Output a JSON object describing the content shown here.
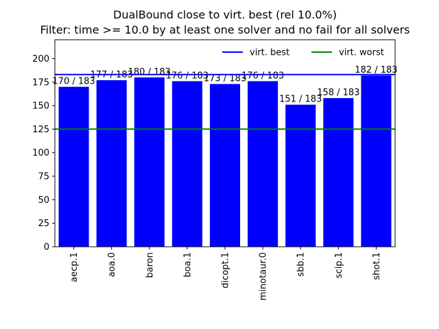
{
  "chart_data": {
    "type": "bar",
    "title": "DualBound close to virt. best (rel 10.0%)",
    "subtitle": "Filter: time >= 10.0 by at least one solver and no fail for all solvers",
    "categories": [
      "aecp.1",
      "aoa.0",
      "baron",
      "boa.1",
      "dicopt.1",
      "minotaur.0",
      "sbb.1",
      "scip.1",
      "shot.1"
    ],
    "values": [
      170,
      177,
      180,
      176,
      173,
      176,
      151,
      158,
      182
    ],
    "bar_labels": [
      "170 / 183",
      "177 / 183",
      "180 / 183",
      "176 / 183",
      "173 / 183",
      "176 / 183",
      "151 / 183",
      "158 / 183",
      "182 / 183"
    ],
    "ylim": [
      0,
      220
    ],
    "yticks": [
      0,
      25,
      50,
      75,
      100,
      125,
      150,
      175,
      200
    ],
    "bar_color": "#0000ff",
    "reference_lines": [
      {
        "name": "virt. best",
        "value": 183,
        "color": "#0000ff"
      },
      {
        "name": "virt. worst",
        "value": 125,
        "color": "#008000"
      }
    ],
    "legend_position": "top-right",
    "grid": false,
    "xlabel": "",
    "ylabel": ""
  }
}
